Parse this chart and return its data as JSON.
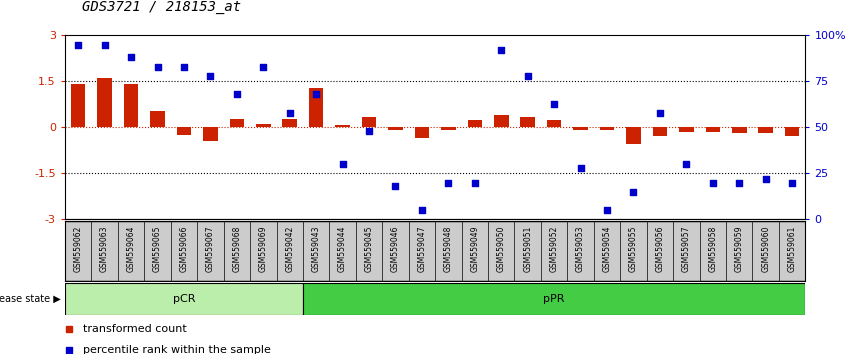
{
  "title": "GDS3721 / 218153_at",
  "samples": [
    "GSM559062",
    "GSM559063",
    "GSM559064",
    "GSM559065",
    "GSM559066",
    "GSM559067",
    "GSM559068",
    "GSM559069",
    "GSM559042",
    "GSM559043",
    "GSM559044",
    "GSM559045",
    "GSM559046",
    "GSM559047",
    "GSM559048",
    "GSM559049",
    "GSM559050",
    "GSM559051",
    "GSM559052",
    "GSM559053",
    "GSM559054",
    "GSM559055",
    "GSM559056",
    "GSM559057",
    "GSM559058",
    "GSM559059",
    "GSM559060",
    "GSM559061"
  ],
  "bar_values": [
    1.42,
    1.6,
    1.42,
    0.55,
    -0.25,
    -0.45,
    0.28,
    0.12,
    0.28,
    1.27,
    0.07,
    0.35,
    -0.07,
    -0.35,
    -0.07,
    0.25,
    0.4,
    0.35,
    0.25,
    -0.08,
    -0.08,
    -0.55,
    -0.28,
    -0.15,
    -0.15,
    -0.18,
    -0.18,
    -0.28
  ],
  "blue_values": [
    95,
    95,
    88,
    83,
    83,
    78,
    68,
    83,
    58,
    68,
    30,
    48,
    18,
    5,
    20,
    20,
    92,
    78,
    63,
    28,
    5,
    15,
    58,
    30,
    20,
    20,
    22,
    20
  ],
  "pCR_count": 9,
  "ylim_left": [
    -3,
    3
  ],
  "ylim_right": [
    0,
    100
  ],
  "bar_color": "#cc2200",
  "blue_color": "#0000cc",
  "pCR_color": "#bbeeaa",
  "pPR_color": "#44cc44",
  "bg_color": "#ffffff",
  "zero_line_color": "#cc2200",
  "dotted_lines": [
    1.5,
    0.0,
    -1.5
  ],
  "title_fontsize": 10,
  "tick_fontsize": 8,
  "legend_fontsize": 8
}
